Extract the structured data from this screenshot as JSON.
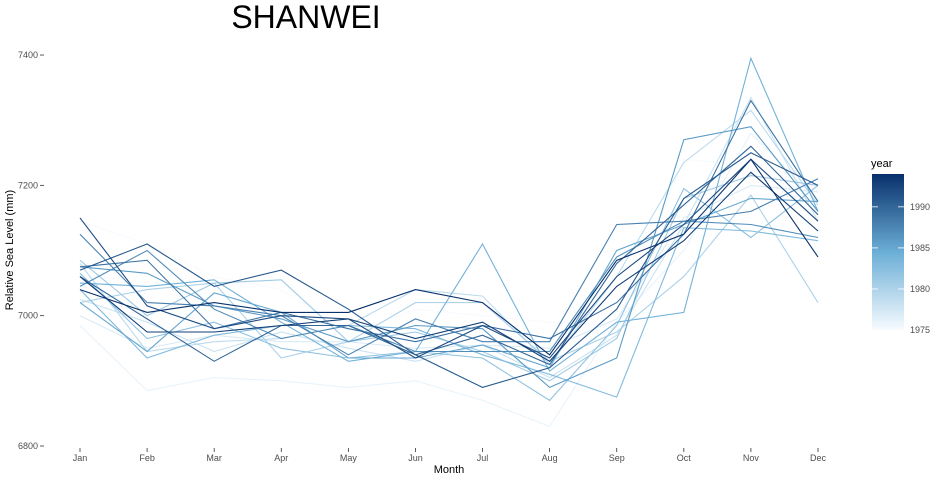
{
  "chart_data": {
    "type": "line",
    "title": "SHANWEI",
    "xlabel": "Month",
    "ylabel": "Relative Sea Level (mm)",
    "categories": [
      "Jan",
      "Feb",
      "Mar",
      "Apr",
      "May",
      "Jun",
      "Jul",
      "Aug",
      "Sep",
      "Oct",
      "Nov",
      "Dec"
    ],
    "ylim": [
      6800,
      7420
    ],
    "yticks": [
      6800,
      7000,
      7200,
      7400
    ],
    "grid": false,
    "legend": {
      "title": "year",
      "position": "right",
      "type": "colorbar",
      "range": [
        1975,
        1994
      ],
      "ticks": [
        1975,
        1980,
        1985,
        1990
      ],
      "low_color": "#f7fbff",
      "high_color": "#08306b"
    },
    "series": [
      {
        "name": "1975",
        "values": [
          7145,
          7110,
          7060,
          7040,
          6970,
          7010,
          7000,
          6990,
          6985,
          7240,
          7230,
          7145
        ]
      },
      {
        "name": "1976",
        "values": [
          6985,
          6885,
          6905,
          6900,
          6890,
          6900,
          6870,
          6830,
          6990,
          7100,
          7280,
          7175
        ]
      },
      {
        "name": "1977",
        "values": [
          7000,
          6950,
          6970,
          6960,
          6960,
          6950,
          6955,
          6950,
          6995,
          7150,
          7200,
          7190
        ]
      },
      {
        "name": "1978",
        "values": [
          7025,
          6990,
          6945,
          6975,
          6950,
          6930,
          6955,
          6905,
          6970,
          7140,
          7335,
          7145
        ]
      },
      {
        "name": "1979",
        "values": [
          7080,
          6945,
          6960,
          6965,
          6985,
          7040,
          7030,
          6925,
          7060,
          7235,
          7315,
          7170
        ]
      },
      {
        "name": "1980",
        "values": [
          7020,
          7040,
          7050,
          6935,
          6960,
          7020,
          7020,
          6930,
          6975,
          7060,
          7185,
          7020
        ]
      },
      {
        "name": "1981",
        "values": [
          7085,
          7000,
          7050,
          7055,
          6960,
          6975,
          6945,
          6900,
          6965,
          7180,
          7215,
          7200
        ]
      },
      {
        "name": "1982",
        "values": [
          7065,
          6965,
          6990,
          6950,
          6935,
          6945,
          6935,
          6870,
          6985,
          7195,
          7120,
          7200
        ]
      },
      {
        "name": "1983",
        "values": [
          7040,
          6935,
          6970,
          6985,
          6985,
          6980,
          6940,
          6910,
          6875,
          7135,
          7130,
          7115
        ]
      },
      {
        "name": "1984",
        "values": [
          7050,
          7045,
          7055,
          6990,
          6930,
          6945,
          7110,
          6915,
          6990,
          7005,
          7395,
          7160
        ]
      },
      {
        "name": "1985",
        "values": [
          7020,
          6945,
          7035,
          7005,
          6935,
          6935,
          6955,
          6920,
          7100,
          7140,
          7180,
          7175
        ]
      },
      {
        "name": "1986",
        "values": [
          7075,
          7065,
          7015,
          6995,
          6960,
          6985,
          6980,
          6890,
          6935,
          7270,
          7290,
          7160
        ]
      },
      {
        "name": "1987",
        "values": [
          7045,
          7100,
          7010,
          6965,
          6985,
          6945,
          6945,
          6945,
          7090,
          7145,
          7140,
          7120
        ]
      },
      {
        "name": "1988",
        "values": [
          7125,
          7020,
          7015,
          7000,
          6940,
          6995,
          6960,
          6960,
          7140,
          7145,
          7160,
          7210
        ]
      },
      {
        "name": "1989",
        "values": [
          7075,
          7085,
          6980,
          7005,
          6980,
          6960,
          6985,
          6965,
          7020,
          7125,
          7330,
          7175
        ]
      },
      {
        "name": "1990",
        "values": [
          7060,
          6995,
          6930,
          6985,
          6985,
          6940,
          6970,
          6925,
          7080,
          7170,
          7260,
          7155
        ]
      },
      {
        "name": "1991",
        "values": [
          7070,
          7110,
          7045,
          7070,
          7010,
          6940,
          6890,
          6920,
          7010,
          7180,
          7250,
          7200
        ]
      },
      {
        "name": "1992",
        "values": [
          7150,
          7015,
          6980,
          7000,
          6995,
          6935,
          6985,
          6935,
          7060,
          7140,
          7240,
          7145
        ]
      },
      {
        "name": "1993",
        "values": [
          7060,
          6975,
          6975,
          6985,
          6995,
          6965,
          6990,
          6930,
          7045,
          7115,
          7220,
          7130
        ]
      },
      {
        "name": "1994",
        "values": [
          7040,
          7005,
          7020,
          7005,
          7005,
          7040,
          7020,
          6940,
          7085,
          7125,
          7240,
          7090
        ]
      }
    ]
  }
}
